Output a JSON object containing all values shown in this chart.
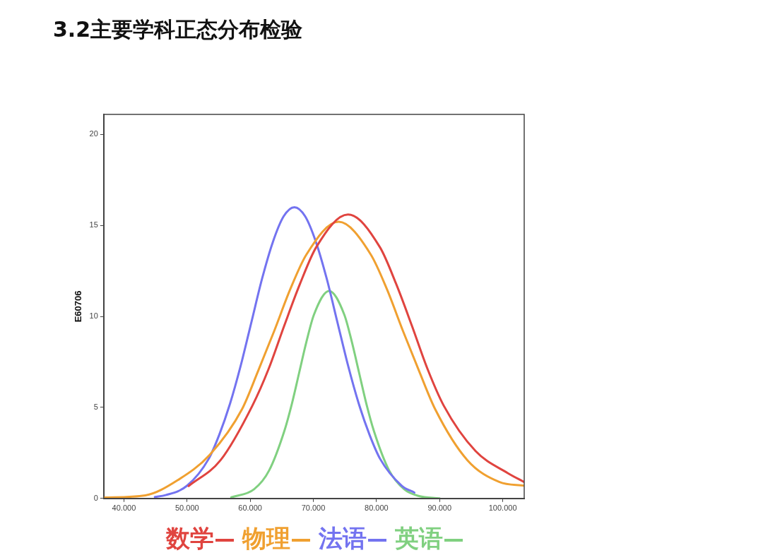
{
  "chart_data": {
    "type": "line",
    "title": "3.2主要学科正态分布检验",
    "ylabel": "E60706",
    "xlim": [
      36.8,
      103.4
    ],
    "xticks": [
      {
        "value": 40,
        "label": "40.000"
      },
      {
        "value": 50,
        "label": "50.000"
      },
      {
        "value": 60,
        "label": "60.000"
      },
      {
        "value": 70,
        "label": "70.000"
      },
      {
        "value": 80,
        "label": "80.000"
      },
      {
        "value": 90,
        "label": "90.000"
      },
      {
        "value": 100,
        "label": "100.000"
      }
    ],
    "ylim": [
      0,
      21.1
    ],
    "yticks": [
      0,
      5,
      10,
      15,
      20
    ],
    "grid": false,
    "legend": "bottom",
    "marker": "none",
    "line_style": "solid",
    "series": [
      {
        "name": "数学",
        "color": "#e0443f",
        "x": [
          50.25,
          55.3,
          60.35,
          62.9,
          65.4,
          67.9,
          70.45,
          75.5,
          80.55,
          83.1,
          85.6,
          88.1,
          90.65,
          95.7,
          100.75,
          103.4
        ],
        "values": [
          0.68,
          2.1,
          5.1,
          7.1,
          9.5,
          11.8,
          13.8,
          15.6,
          13.8,
          11.8,
          9.5,
          7.1,
          5.1,
          2.6,
          1.4,
          0.9
        ]
      },
      {
        "name": "物理",
        "color": "#f0a030",
        "x": [
          36.8,
          43.4,
          48.5,
          53.6,
          58.7,
          61.25,
          63.8,
          66.35,
          68.9,
          74,
          79.1,
          81.65,
          84.2,
          86.75,
          89.3,
          94.4,
          99.5,
          103.4
        ],
        "values": [
          0.05,
          0.17,
          1.0,
          2.4,
          4.9,
          7.0,
          9.2,
          11.5,
          13.4,
          15.2,
          13.4,
          11.5,
          9.2,
          7.0,
          4.9,
          2.1,
          0.9,
          0.7
        ]
      },
      {
        "name": "法语",
        "color": "#7373f0",
        "x": [
          44.9,
          46.6,
          50,
          53.4,
          55.1,
          56.8,
          58.5,
          60.2,
          61.9,
          63.6,
          65.3,
          67,
          68.7,
          70.4,
          72.1,
          73.8,
          75.5,
          77.2,
          78.9,
          80.6,
          84,
          86
        ],
        "values": [
          0.08,
          0.18,
          0.7,
          2.16,
          3.5,
          5.2,
          7.3,
          9.7,
          12.1,
          14.1,
          15.5,
          16,
          15.5,
          14.1,
          12.1,
          9.7,
          7.3,
          5.2,
          3.5,
          2.16,
          0.7,
          0.32
        ]
      },
      {
        "name": "英语",
        "color": "#80d080",
        "x": [
          57,
          60.6,
          63,
          65.4,
          66.6,
          67.75,
          68.9,
          70.1,
          72.5,
          74.9,
          76.1,
          77.25,
          78.4,
          79.6,
          82,
          84.4,
          86.75,
          90
        ],
        "values": [
          0.06,
          0.5,
          1.54,
          3.7,
          5.2,
          6.9,
          8.6,
          10.1,
          11.4,
          10.1,
          8.6,
          6.9,
          5.2,
          3.7,
          1.54,
          0.5,
          0.13,
          0
        ]
      }
    ]
  }
}
